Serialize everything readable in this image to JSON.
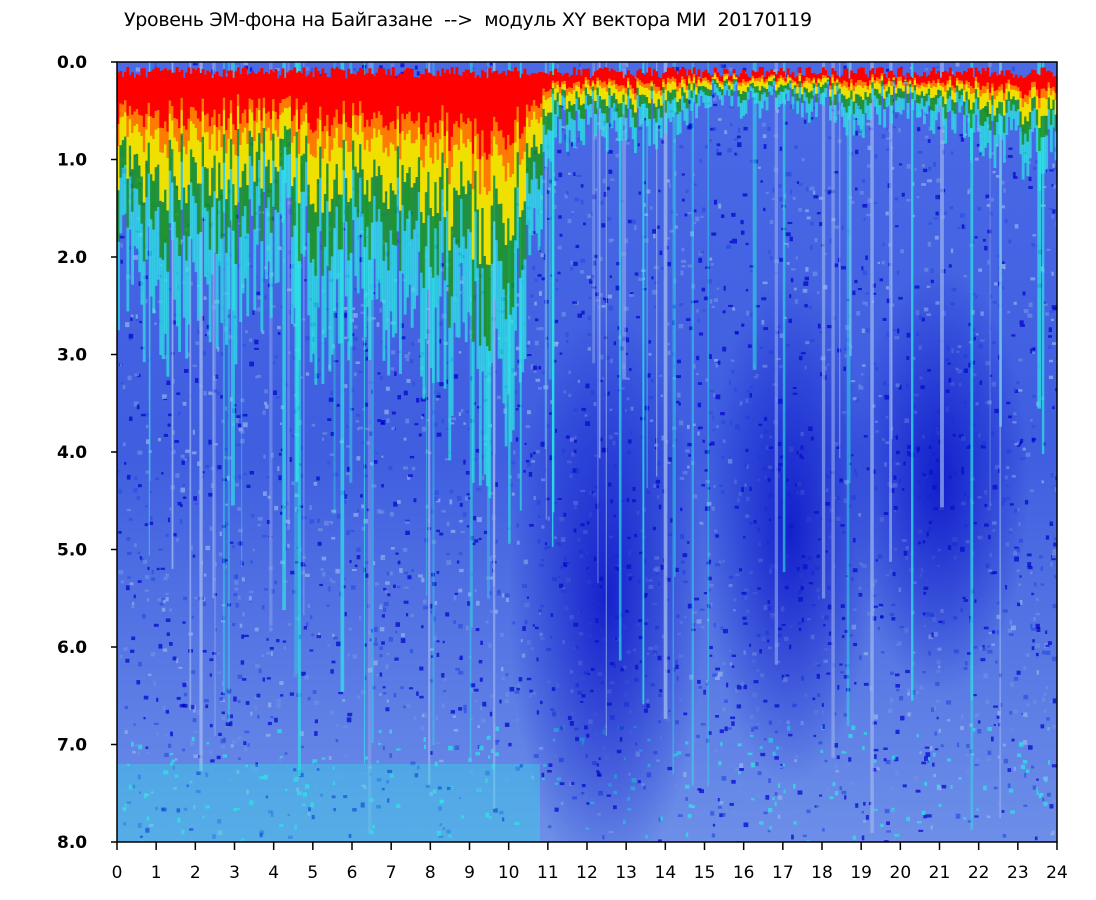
{
  "chart_data": {
    "type": "heatmap",
    "title": "Уровень ЭМ-фона на Байгазане  -->  модуль XY вектора МИ  20170119",
    "xlabel": "",
    "ylabel": "",
    "xlim": [
      0,
      24
    ],
    "ylim": [
      0,
      8
    ],
    "y_inverted": true,
    "x_ticks": [
      "0",
      "1",
      "2",
      "3",
      "4",
      "5",
      "6",
      "7",
      "8",
      "9",
      "10",
      "11",
      "12",
      "13",
      "14",
      "15",
      "16",
      "17",
      "18",
      "19",
      "20",
      "21",
      "22",
      "23",
      "24"
    ],
    "y_ticks": [
      "0.0",
      "1.0",
      "2.0",
      "3.0",
      "4.0",
      "5.0",
      "6.0",
      "7.0",
      "8.0"
    ],
    "grid": false,
    "colorscale": [
      "#0000cc",
      "#2b4fe0",
      "#6f8fe6",
      "#9ab3ee",
      "#2ee6e6",
      "#1a9a1a",
      "#f0e000",
      "#ff7a00",
      "#ff0000"
    ],
    "profile": {
      "hours": [
        0,
        1,
        2,
        3,
        4,
        5,
        6,
        7,
        8,
        9,
        10,
        10.6,
        11,
        12,
        13,
        14,
        15,
        16,
        17,
        18,
        19,
        20,
        21,
        22,
        23,
        24
      ],
      "hot_edge_level": [
        1.3,
        1.6,
        1.3,
        1.4,
        1.2,
        1.5,
        1.4,
        1.5,
        1.6,
        2.2,
        1.8,
        1.2,
        0.5,
        0.4,
        0.5,
        0.4,
        0.3,
        0.3,
        0.3,
        0.3,
        0.4,
        0.3,
        0.4,
        0.5,
        0.6,
        0.7
      ]
    }
  }
}
